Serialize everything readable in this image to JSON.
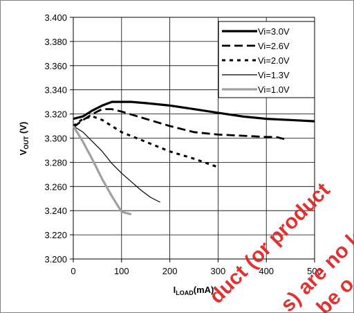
{
  "chart_data": {
    "type": "line",
    "xlabel": {
      "main": "I",
      "sub": "LOAD",
      "unit": "(mA)"
    },
    "ylabel": {
      "main": "V",
      "sub": "OUT",
      "unit": " (V)"
    },
    "xlim": [
      0,
      500
    ],
    "ylim": [
      3.2,
      3.4
    ],
    "x_ticks": [
      "0",
      "100",
      "200",
      "300",
      "400",
      "500"
    ],
    "y_ticks": [
      "3.200",
      "3.220",
      "3.240",
      "3.260",
      "3.280",
      "3.300",
      "3.320",
      "3.340",
      "3.360",
      "3.380",
      "3.400"
    ],
    "grid": true,
    "legend_position": "top-right",
    "series": [
      {
        "name": "Vi=3.0V",
        "color": "#000000",
        "style": "solid-thick",
        "x": [
          0,
          20,
          40,
          60,
          80,
          100,
          120,
          150,
          200,
          250,
          300,
          350,
          400,
          450,
          500
        ],
        "y": [
          3.316,
          3.318,
          3.323,
          3.327,
          3.33,
          3.33,
          3.33,
          3.329,
          3.327,
          3.324,
          3.321,
          3.318,
          3.316,
          3.315,
          3.314
        ]
      },
      {
        "name": "Vi=2.6V",
        "color": "#000000",
        "style": "dashed-long",
        "x": [
          0,
          20,
          40,
          60,
          80,
          100,
          150,
          200,
          250,
          300,
          350,
          400,
          420,
          440
        ],
        "y": [
          3.309,
          3.315,
          3.32,
          3.324,
          3.324,
          3.322,
          3.316,
          3.31,
          3.305,
          3.303,
          3.302,
          3.301,
          3.301,
          3.299
        ]
      },
      {
        "name": "Vi=2.0V",
        "color": "#000000",
        "style": "dashed-short",
        "x": [
          0,
          20,
          40,
          60,
          80,
          100,
          150,
          200,
          250,
          300
        ],
        "y": [
          3.31,
          3.316,
          3.318,
          3.315,
          3.31,
          3.305,
          3.297,
          3.289,
          3.283,
          3.276
        ]
      },
      {
        "name": "Vi=1.3V",
        "color": "#000000",
        "style": "solid-thin",
        "x": [
          0,
          20,
          40,
          60,
          80,
          100,
          120,
          140,
          160,
          180
        ],
        "y": [
          3.31,
          3.305,
          3.297,
          3.289,
          3.279,
          3.271,
          3.264,
          3.257,
          3.251,
          3.247
        ]
      },
      {
        "name": "Vi=1.0V",
        "color": "#a0a0a0",
        "style": "solid-thick",
        "x": [
          0,
          20,
          40,
          60,
          80,
          100,
          120
        ],
        "y": [
          3.31,
          3.297,
          3.282,
          3.266,
          3.252,
          3.239,
          3.237
        ]
      }
    ]
  },
  "watermark": [
    "duct (or product",
    "s) are no lon",
    "be o"
  ]
}
